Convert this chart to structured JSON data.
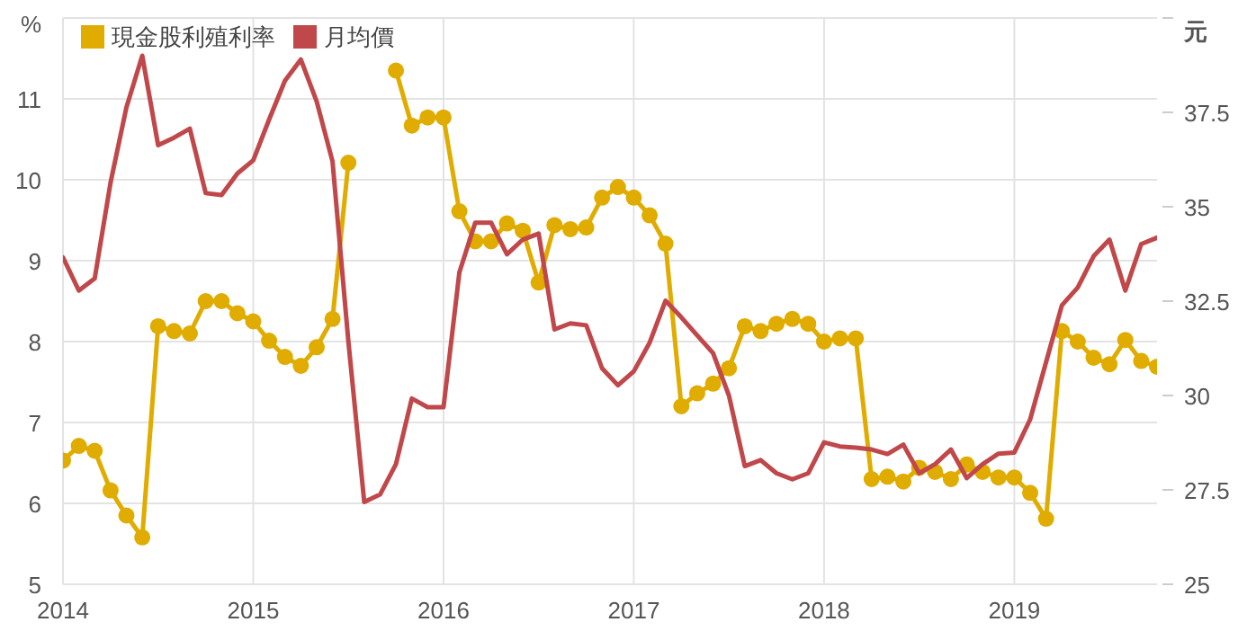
{
  "chart_data": {
    "type": "line",
    "x": [
      "2014-01",
      "2014-02",
      "2014-03",
      "2014-04",
      "2014-05",
      "2014-06",
      "2014-07",
      "2014-08",
      "2014-09",
      "2014-10",
      "2014-11",
      "2014-12",
      "2015-01",
      "2015-02",
      "2015-03",
      "2015-04",
      "2015-05",
      "2015-06",
      "2015-07",
      "2015-08",
      "2015-09",
      "2015-10",
      "2015-11",
      "2015-12",
      "2016-01",
      "2016-02",
      "2016-03",
      "2016-04",
      "2016-05",
      "2016-06",
      "2016-07",
      "2016-08",
      "2016-09",
      "2016-10",
      "2016-11",
      "2016-12",
      "2017-01",
      "2017-02",
      "2017-03",
      "2017-04",
      "2017-05",
      "2017-06",
      "2017-07",
      "2017-08",
      "2017-09",
      "2017-10",
      "2017-11",
      "2017-12",
      "2018-01",
      "2018-02",
      "2018-03",
      "2018-04",
      "2018-05",
      "2018-06",
      "2018-07",
      "2018-08",
      "2018-09",
      "2018-10",
      "2018-11",
      "2018-12",
      "2019-01",
      "2019-02",
      "2019-03",
      "2019-04",
      "2019-05",
      "2019-06",
      "2019-07",
      "2019-08",
      "2019-09",
      "2019-10"
    ],
    "series": [
      {
        "name": "現金股利殖利率",
        "color": "#e0ac00",
        "marker": "circle",
        "values": [
          6.53,
          6.71,
          6.65,
          6.16,
          5.85,
          5.58,
          8.19,
          8.13,
          8.1,
          8.5,
          8.5,
          8.35,
          8.25,
          8.01,
          7.81,
          7.7,
          7.93,
          8.28,
          10.21,
          null,
          null,
          11.35,
          10.67,
          10.77,
          10.77,
          9.61,
          9.24,
          9.24,
          9.46,
          9.37,
          8.73,
          9.44,
          9.39,
          9.41,
          9.78,
          9.91,
          9.78,
          9.56,
          9.21,
          7.2,
          7.36,
          7.48,
          7.67,
          8.19,
          8.13,
          8.22,
          8.28,
          8.22,
          8.0,
          8.04,
          8.04,
          6.3,
          6.33,
          6.27,
          6.44,
          6.39,
          6.3,
          6.48,
          6.39,
          6.32,
          6.32,
          6.13,
          5.81,
          8.13,
          8.0,
          7.8,
          7.72,
          8.02,
          7.76,
          7.69
        ]
      },
      {
        "name": "月均價",
        "color": "#c0474a",
        "marker": "none",
        "axis": "y2",
        "values": [
          33.66,
          32.78,
          33.1,
          35.64,
          37.63,
          39.0,
          36.63,
          36.83,
          37.07,
          35.36,
          35.31,
          35.88,
          36.23,
          37.31,
          38.34,
          38.9,
          37.79,
          36.2,
          31.43,
          27.18,
          27.38,
          28.18,
          29.92,
          29.69,
          29.69,
          33.26,
          34.58,
          34.58,
          33.74,
          34.13,
          34.29,
          31.75,
          31.91,
          31.86,
          30.72,
          30.27,
          30.64,
          31.4,
          32.51,
          32.07,
          31.59,
          31.12,
          30.0,
          28.13,
          28.29,
          27.94,
          27.78,
          27.94,
          28.76,
          28.65,
          28.62,
          28.57,
          28.45,
          28.7,
          27.94,
          28.18,
          28.57,
          27.81,
          28.18,
          28.46,
          28.49,
          29.37,
          30.88,
          32.39,
          32.86,
          33.69,
          34.13,
          32.78,
          34.01,
          34.18
        ]
      }
    ],
    "ylabel": "%",
    "y2label": "元",
    "xlim": [
      "2014-01",
      "2019-10"
    ],
    "xticks": [
      "2014",
      "2015",
      "2016",
      "2017",
      "2018",
      "2019"
    ],
    "ylim": [
      5,
      12
    ],
    "yticks": [
      5,
      6,
      7,
      8,
      9,
      10,
      11,
      {
        "value": 12,
        "label": null
      }
    ],
    "y2lim": [
      25,
      40
    ],
    "y2ticks": [
      25,
      27.5,
      30,
      32.5,
      35,
      37.5,
      {
        "value": 40,
        "label": null
      }
    ],
    "grid": true,
    "legend": "top left",
    "line_style": "solid"
  }
}
